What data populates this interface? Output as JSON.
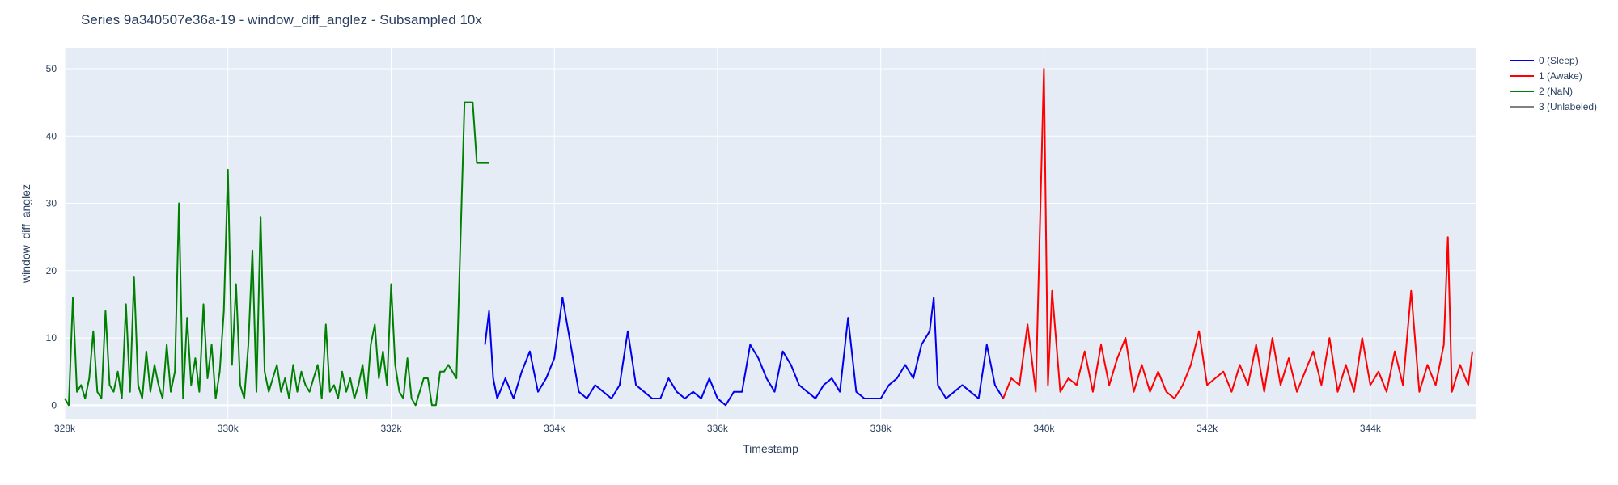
{
  "chart_data": {
    "type": "line",
    "title": "Series 9a340507e36a-19 - window_diff_anglez - Subsampled 10x",
    "xlabel": "Timestamp",
    "ylabel": "window_diff_anglez",
    "xlim": [
      328000,
      345300
    ],
    "ylim": [
      -2,
      53
    ],
    "xticks": [
      328000,
      330000,
      332000,
      334000,
      336000,
      338000,
      340000,
      342000,
      344000
    ],
    "xtick_labels": [
      "328k",
      "330k",
      "332k",
      "334k",
      "336k",
      "338k",
      "340k",
      "342k",
      "344k"
    ],
    "yticks": [
      0,
      10,
      20,
      30,
      40,
      50
    ],
    "grid": true,
    "legend_position": "top-right",
    "series": [
      {
        "name": "0 (Sleep)",
        "color": "#0000ee",
        "x": [
          333150,
          333200,
          333250,
          333300,
          333400,
          333500,
          333600,
          333700,
          333800,
          333900,
          334000,
          334100,
          334200,
          334300,
          334400,
          334500,
          334600,
          334700,
          334800,
          334900,
          335000,
          335100,
          335200,
          335300,
          335400,
          335500,
          335600,
          335700,
          335800,
          335900,
          336000,
          336100,
          336200,
          336300,
          336400,
          336500,
          336600,
          336700,
          336800,
          336900,
          337000,
          337100,
          337200,
          337300,
          337400,
          337500,
          337600,
          337700,
          337800,
          337900,
          338000,
          338100,
          338200,
          338300,
          338400,
          338500,
          338600,
          338650,
          338700,
          338800,
          338900,
          339000,
          339100,
          339200,
          339300,
          339400,
          339500
        ],
        "y": [
          9,
          14,
          4,
          1,
          4,
          1,
          5,
          8,
          2,
          4,
          7,
          16,
          9,
          2,
          1,
          3,
          2,
          1,
          3,
          11,
          3,
          2,
          1,
          1,
          4,
          2,
          1,
          2,
          1,
          4,
          1,
          0,
          2,
          2,
          9,
          7,
          4,
          2,
          8,
          6,
          3,
          2,
          1,
          3,
          4,
          2,
          13,
          2,
          1,
          1,
          1,
          3,
          4,
          6,
          4,
          9,
          11,
          16,
          3,
          1,
          2,
          3,
          2,
          1,
          9,
          3,
          1
        ]
      },
      {
        "name": "1 (Awake)",
        "color": "#ff0000",
        "x": [
          339500,
          339600,
          339700,
          339800,
          339900,
          340000,
          340050,
          340100,
          340200,
          340300,
          340400,
          340500,
          340600,
          340700,
          340800,
          340900,
          341000,
          341100,
          341200,
          341300,
          341400,
          341500,
          341600,
          341700,
          341800,
          341900,
          342000,
          342100,
          342200,
          342300,
          342400,
          342500,
          342600,
          342700,
          342800,
          342900,
          343000,
          343100,
          343200,
          343300,
          343400,
          343500,
          343600,
          343700,
          343800,
          343900,
          344000,
          344100,
          344200,
          344300,
          344400,
          344500,
          344600,
          344700,
          344800,
          344900,
          344950,
          345000,
          345100,
          345200,
          345250
        ],
        "y": [
          1,
          4,
          3,
          12,
          2,
          50,
          3,
          17,
          2,
          4,
          3,
          8,
          2,
          9,
          3,
          7,
          10,
          2,
          6,
          2,
          5,
          2,
          1,
          3,
          6,
          11,
          3,
          4,
          5,
          2,
          6,
          3,
          9,
          2,
          10,
          3,
          7,
          2,
          5,
          8,
          3,
          10,
          2,
          6,
          2,
          10,
          3,
          5,
          2,
          8,
          3,
          17,
          2,
          6,
          3,
          9,
          25,
          2,
          6,
          3,
          8
        ]
      },
      {
        "name": "2 (NaN)",
        "color": "#008000",
        "x": [
          328000,
          328050,
          328100,
          328150,
          328200,
          328250,
          328300,
          328350,
          328400,
          328450,
          328500,
          328550,
          328600,
          328650,
          328700,
          328750,
          328800,
          328850,
          328900,
          328950,
          329000,
          329050,
          329100,
          329150,
          329200,
          329250,
          329300,
          329350,
          329400,
          329450,
          329500,
          329550,
          329600,
          329650,
          329700,
          329750,
          329800,
          329850,
          329900,
          329950,
          330000,
          330050,
          330100,
          330150,
          330200,
          330250,
          330300,
          330350,
          330400,
          330450,
          330500,
          330550,
          330600,
          330650,
          330700,
          330750,
          330800,
          330850,
          330900,
          330950,
          331000,
          331050,
          331100,
          331150,
          331200,
          331250,
          331300,
          331350,
          331400,
          331450,
          331500,
          331550,
          331600,
          331650,
          331700,
          331750,
          331800,
          331850,
          331900,
          331950,
          332000,
          332050,
          332100,
          332150,
          332200,
          332250,
          332300,
          332350,
          332400,
          332450,
          332500,
          332550,
          332600,
          332650,
          332700,
          332800,
          332900,
          333000,
          333050,
          333100,
          333150,
          333200
        ],
        "y": [
          1,
          0,
          16,
          2,
          3,
          1,
          4,
          11,
          2,
          1,
          14,
          3,
          2,
          5,
          1,
          15,
          2,
          19,
          3,
          1,
          8,
          2,
          6,
          3,
          1,
          9,
          2,
          5,
          30,
          1,
          13,
          3,
          7,
          2,
          15,
          4,
          9,
          1,
          5,
          14,
          35,
          6,
          18,
          3,
          1,
          9,
          23,
          2,
          28,
          5,
          2,
          4,
          6,
          2,
          4,
          1,
          6,
          2,
          5,
          3,
          2,
          4,
          6,
          1,
          12,
          2,
          3,
          1,
          5,
          2,
          4,
          1,
          3,
          6,
          1,
          9,
          12,
          4,
          8,
          3,
          18,
          6,
          2,
          1,
          7,
          1,
          0,
          2,
          4,
          4,
          0,
          0,
          5,
          5,
          6,
          4,
          45,
          45,
          36,
          36,
          36,
          36
        ]
      },
      {
        "name": "3 (Unlabeled)",
        "color": "#808080",
        "x": [],
        "y": []
      }
    ]
  }
}
